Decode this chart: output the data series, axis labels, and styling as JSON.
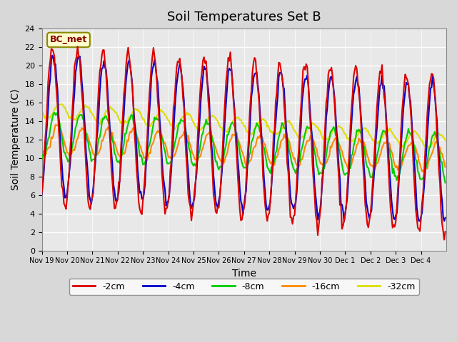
{
  "title": "Soil Temperatures Set B",
  "xlabel": "Time",
  "ylabel": "Soil Temperature (C)",
  "ylim": [
    0,
    24
  ],
  "yticks": [
    0,
    2,
    4,
    6,
    8,
    10,
    12,
    14,
    16,
    18,
    20,
    22,
    24
  ],
  "x_labels": [
    "Nov 19",
    "Nov 20",
    "Nov 21",
    "Nov 22",
    "Nov 23",
    "Nov 24",
    "Nov 25",
    "Nov 26",
    "Nov 27",
    "Nov 28",
    "Nov 29",
    "Nov 30",
    "Dec 1",
    "Dec 2",
    "Dec 3",
    "Dec 4"
  ],
  "series": {
    "-2cm": {
      "color": "#dd0000",
      "lw": 1.5
    },
    "-4cm": {
      "color": "#0000cc",
      "lw": 1.5
    },
    "-8cm": {
      "color": "#00cc00",
      "lw": 1.5
    },
    "-16cm": {
      "color": "#ff8800",
      "lw": 1.5
    },
    "-32cm": {
      "color": "#dddd00",
      "lw": 1.5
    }
  },
  "legend_label": "BC_met",
  "fig_facecolor": "#d8d8d8",
  "ax_facecolor": "#e8e8e8",
  "title_fontsize": 13,
  "axis_fontsize": 10,
  "tick_fontsize": 7,
  "n_days": 16,
  "points_per_day": 24
}
